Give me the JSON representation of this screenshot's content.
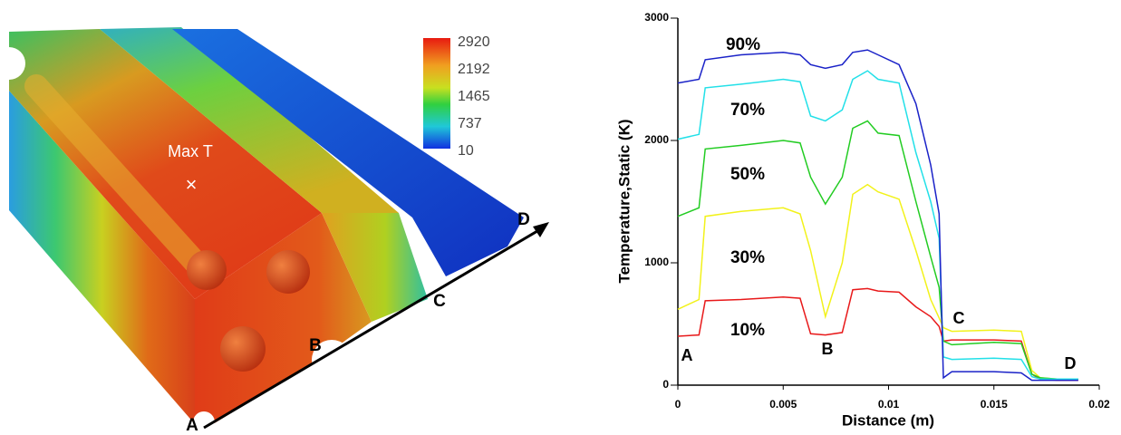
{
  "render": {
    "label": "Max T",
    "marker": "×",
    "points": [
      "A",
      "B",
      "C",
      "D"
    ],
    "colorbar": {
      "ticks": [
        10,
        737,
        1465,
        2192,
        2920
      ]
    }
  },
  "chart_data": {
    "type": "line",
    "xlabel": "Distance (m)",
    "ylabel": "Temperature,Static (K)",
    "x": [
      0,
      0.001,
      0.0013,
      0.003,
      0.005,
      0.0058,
      0.0063,
      0.007,
      0.0078,
      0.0083,
      0.009,
      0.0095,
      0.0105,
      0.0113,
      0.012,
      0.0124,
      0.0126,
      0.013,
      0.015,
      0.0163,
      0.0168,
      0.0172,
      0.018,
      0.019
    ],
    "series": [
      {
        "name": "10%",
        "color": "#e8191a",
        "values": [
          400,
          410,
          690,
          700,
          720,
          710,
          420,
          410,
          430,
          780,
          790,
          770,
          760,
          640,
          560,
          480,
          360,
          370,
          370,
          360,
          90,
          50,
          40,
          40
        ]
      },
      {
        "name": "30%",
        "color": "#f2f21a",
        "values": [
          620,
          700,
          1380,
          1420,
          1450,
          1400,
          1100,
          560,
          1000,
          1560,
          1640,
          1580,
          1520,
          1100,
          700,
          550,
          470,
          440,
          450,
          440,
          120,
          60,
          50,
          50
        ]
      },
      {
        "name": "50%",
        "color": "#22cc22",
        "values": [
          1380,
          1450,
          1930,
          1960,
          2000,
          1980,
          1700,
          1480,
          1700,
          2100,
          2160,
          2060,
          2040,
          1500,
          1050,
          800,
          360,
          330,
          350,
          340,
          90,
          60,
          50,
          50
        ]
      },
      {
        "name": "70%",
        "color": "#22e0e8",
        "values": [
          2010,
          2050,
          2430,
          2460,
          2500,
          2480,
          2200,
          2160,
          2250,
          2500,
          2570,
          2500,
          2470,
          1900,
          1500,
          1200,
          230,
          210,
          220,
          210,
          70,
          50,
          50,
          50
        ]
      },
      {
        "name": "90%",
        "color": "#1a22c8",
        "values": [
          2470,
          2500,
          2660,
          2700,
          2720,
          2700,
          2620,
          2590,
          2620,
          2720,
          2740,
          2700,
          2620,
          2300,
          1800,
          1400,
          60,
          110,
          110,
          100,
          40,
          40,
          40,
          40
        ]
      }
    ],
    "annotations": [
      "A",
      "B",
      "C",
      "D"
    ],
    "xlim": [
      0,
      0.02
    ],
    "xticks": [
      0,
      0.005,
      0.01,
      0.015,
      0.02
    ],
    "ylim": [
      0,
      3000
    ],
    "yticks": [
      0,
      1000,
      2000,
      3000
    ]
  }
}
